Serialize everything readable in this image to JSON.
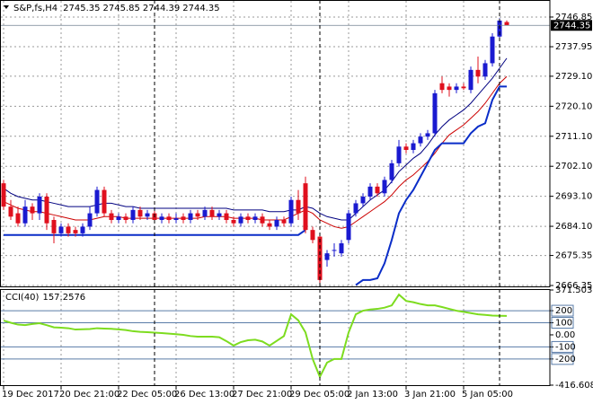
{
  "chart_data": [
    {
      "type": "candlestick",
      "title": "S&P,fs,H4",
      "categories": [
        "19 Dec 2017",
        null,
        null,
        null,
        null,
        null,
        null,
        null,
        "20 Dec 21:00",
        null,
        null,
        null,
        null,
        null,
        null,
        null,
        "22 Dec 05:00",
        null,
        null,
        null,
        null,
        null,
        null,
        null,
        "26 Dec 13:00",
        null,
        null,
        null,
        null,
        null,
        null,
        null,
        "27 Dec 21:00",
        null,
        null,
        null,
        null,
        null,
        null,
        null,
        "29 Dec 05:00",
        null,
        null,
        null,
        null,
        null,
        null,
        null,
        "2 Jan 13:00",
        null,
        null,
        null,
        null,
        null,
        null,
        null,
        "3 Jan 21:00",
        null,
        null,
        null,
        null,
        null,
        null,
        null,
        "5 Jan 05:00",
        null,
        null,
        null,
        null,
        null,
        null
      ],
      "open": [
        2697,
        2690,
        2688,
        2685,
        2690,
        2688,
        2693,
        2686,
        2682,
        2684,
        2683,
        2682,
        2684,
        2688,
        2695,
        2688,
        2686,
        2687,
        2686,
        2689,
        2687,
        2688,
        2686,
        2687,
        2686,
        2687,
        2686,
        2688,
        2687,
        2689,
        2687,
        2688,
        2686,
        2685,
        2687,
        2686,
        2687,
        2685,
        2684,
        2686,
        2685,
        2692,
        2697,
        2683,
        2681,
        2674,
        2677,
        2676,
        2680,
        2688,
        2691,
        2693,
        2696,
        2694,
        2698,
        2703,
        2708,
        2707,
        2709,
        2711,
        2712,
        2727,
        2726,
        2725,
        2726,
        2725,
        2731,
        2729,
        2733,
        2741,
        2745.35
      ],
      "high": [
        2698,
        2692,
        2690,
        2692,
        2691,
        2694,
        2694,
        2687,
        2685,
        2685,
        2684,
        2685,
        2690,
        2696,
        2696,
        2689,
        2688,
        2688,
        2690,
        2690,
        2689,
        2689,
        2688,
        2688,
        2688,
        2688,
        2689,
        2689,
        2690,
        2690,
        2689,
        2689,
        2687,
        2688,
        2688,
        2688,
        2688,
        2686,
        2687,
        2687,
        2693,
        2695,
        2699,
        2684,
        2682,
        2677,
        2679,
        2680,
        2689,
        2692,
        2694,
        2697,
        2697,
        2699,
        2704,
        2710,
        2709,
        2710,
        2712,
        2713,
        2725,
        2729,
        2727,
        2727,
        2727,
        2732,
        2735,
        2734,
        2742,
        2746.5,
        2745.85
      ],
      "low": [
        2689,
        2686,
        2684,
        2684,
        2686,
        2686,
        2683,
        2679,
        2681,
        2681,
        2681,
        2681,
        2683,
        2687,
        2687,
        2685,
        2685,
        2685,
        2685,
        2686,
        2686,
        2685,
        2685,
        2685,
        2685,
        2685,
        2685,
        2686,
        2686,
        2686,
        2686,
        2685,
        2684,
        2684,
        2685,
        2685,
        2684,
        2683,
        2683,
        2684,
        2684,
        2686,
        2682,
        2679,
        2667,
        2672,
        2675,
        2675,
        2679,
        2687,
        2690,
        2692,
        2693,
        2693,
        2697,
        2702,
        2706,
        2706,
        2708,
        2710,
        2711,
        2724,
        2723,
        2724,
        2725,
        2724,
        2727,
        2728,
        2732,
        2740,
        2744.39
      ],
      "close": [
        2690,
        2687,
        2685,
        2690,
        2688,
        2693,
        2685,
        2682,
        2684,
        2682,
        2682,
        2684,
        2688,
        2695,
        2688,
        2686,
        2687,
        2686,
        2689,
        2687,
        2688,
        2686,
        2687,
        2686,
        2686.5,
        2686,
        2688,
        2687,
        2689,
        2687,
        2688,
        2686,
        2685,
        2687,
        2686,
        2687,
        2685,
        2684,
        2686,
        2685,
        2692,
        2688,
        2683,
        2680,
        2668,
        2676,
        2677,
        2679,
        2688,
        2691,
        2693,
        2696,
        2694,
        2698,
        2703,
        2708,
        2707,
        2709,
        2711,
        2712,
        2724,
        2725,
        2725,
        2726,
        2725.5,
        2731,
        2729,
        2733,
        2741,
        2745.8,
        2744.35
      ],
      "up_color": "#1a1ad0",
      "down_color": "#e0101e",
      "lines": [
        {
          "color": "#000080",
          "width": 1,
          "values": [
            2695.5,
            2694,
            2693,
            2692.5,
            2692,
            2692,
            2691.5,
            2691,
            2690.5,
            2690,
            2690,
            2690,
            2690,
            2690.5,
            2691,
            2691,
            2690.5,
            2690,
            2690,
            2689.5,
            2689.5,
            2689.5,
            2689.5,
            2689.5,
            2689.5,
            2689.5,
            2689.5,
            2689.5,
            2689.5,
            2689.5,
            2689.5,
            2689.5,
            2689,
            2689,
            2689,
            2689,
            2689,
            2688.5,
            2688.5,
            2688.5,
            2689,
            2689,
            2690,
            2689.5,
            2688,
            2687,
            2686.5,
            2686,
            2686,
            2688,
            2690,
            2692,
            2693.5,
            2695,
            2697.5,
            2700.5,
            2702.5,
            2704.5,
            2706,
            2708.5,
            2711.5,
            2714,
            2716,
            2717.5,
            2719,
            2721,
            2723.5,
            2726,
            2728.5,
            2731.5,
            2734.5
          ]
        },
        {
          "color": "#cc0000",
          "width": 1,
          "values": [
            2691.5,
            2690.5,
            2689.5,
            2689,
            2688.5,
            2688.5,
            2688,
            2687.5,
            2687,
            2686.5,
            2686,
            2686,
            2686,
            2686.5,
            2687,
            2687,
            2687,
            2686.5,
            2686.5,
            2686.5,
            2686.5,
            2686.5,
            2686.5,
            2686.5,
            2686.5,
            2686.5,
            2686.5,
            2686.5,
            2687,
            2687,
            2687,
            2687,
            2686.5,
            2686.5,
            2686.5,
            2686.5,
            2686,
            2686,
            2686,
            2686,
            2687,
            2688,
            2689,
            2688,
            2686,
            2685,
            2684,
            2683.5,
            2684,
            2685.5,
            2687,
            2688.5,
            2690,
            2691.5,
            2693.5,
            2696,
            2698,
            2699.5,
            2701.5,
            2703.5,
            2706,
            2709,
            2711.5,
            2713,
            2714.5,
            2716.5,
            2718.5,
            2721,
            2724,
            2727,
            2729
          ]
        },
        {
          "color": "#0a2dc8",
          "width": 2,
          "values": [
            2681.5,
            2681.5,
            2681.5,
            2681.5,
            2681.5,
            2681.5,
            2681.5,
            2681.5,
            2681.5,
            2681.5,
            2681.5,
            2681.5,
            2681.5,
            2681.5,
            2681.5,
            2681.5,
            2681.5,
            2681.5,
            2681.5,
            2681.5,
            2681.5,
            2681.5,
            2681.5,
            2681.5,
            2681.5,
            2681.5,
            2681.5,
            2681.5,
            2681.5,
            2681.5,
            2681.5,
            2681.5,
            2681.5,
            2681.5,
            2681.5,
            2681.5,
            2681.5,
            2681.5,
            2681.5,
            2681.5,
            2681.5,
            2681.5,
            2683,
            null,
            null,
            null,
            null,
            null,
            null,
            2666.5,
            2668,
            2668,
            2668.5,
            2673,
            2680,
            2688,
            2692,
            2695,
            2699,
            2703,
            2707,
            2709,
            2709,
            2709,
            2709,
            2712,
            2714,
            2715,
            2722,
            2726,
            2726
          ]
        }
      ],
      "ylim": [
        2666.35,
        2751.96
      ],
      "yticks": [
        2746.85,
        2737.95,
        {
          "value": 2729.1,
          "label": "2729.10"
        },
        {
          "value": 2720.1,
          "label": "2720.10"
        },
        {
          "value": 2711.1,
          "label": "2711.10"
        },
        {
          "value": 2702.1,
          "label": "2702.10"
        },
        {
          "value": 2693.1,
          "label": "2693.10"
        },
        {
          "value": 2684.1,
          "label": "2684.10"
        },
        2675.35,
        2666.35
      ],
      "grid": true
    },
    {
      "type": "line",
      "title": "CCI(40)",
      "series": [
        {
          "color": "#7ddc1f",
          "values": [
            118,
            100,
            85,
            81,
            90,
            96,
            80,
            62,
            59,
            55,
            44,
            46,
            48,
            55,
            52,
            50,
            45,
            40,
            30,
            25,
            22,
            18,
            15,
            10,
            5,
            0,
            -10,
            -15,
            -15,
            -15,
            -20,
            -52,
            -89,
            -60,
            -45,
            -40,
            -55,
            -89,
            -50,
            -10,
            170,
            120,
            20,
            -200,
            -348,
            -230,
            -200,
            -200,
            20,
            170,
            200,
            210,
            215,
            225,
            244,
            333,
            281,
            270,
            255,
            244,
            244,
            230,
            215,
            200,
            190,
            180,
            170,
            165,
            160,
            158,
            157.2576
          ]
        }
      ],
      "ylim": [
        -416.6083,
        371.5039
      ],
      "yticks": [
        371.5039,
        200,
        100,
        {
          "value": 0,
          "label": "0.00"
        },
        -100,
        -200,
        -416.6083
      ],
      "levels": [
        200,
        100,
        -100,
        -200
      ],
      "level_color": "#5a7ca8"
    }
  ]
}
